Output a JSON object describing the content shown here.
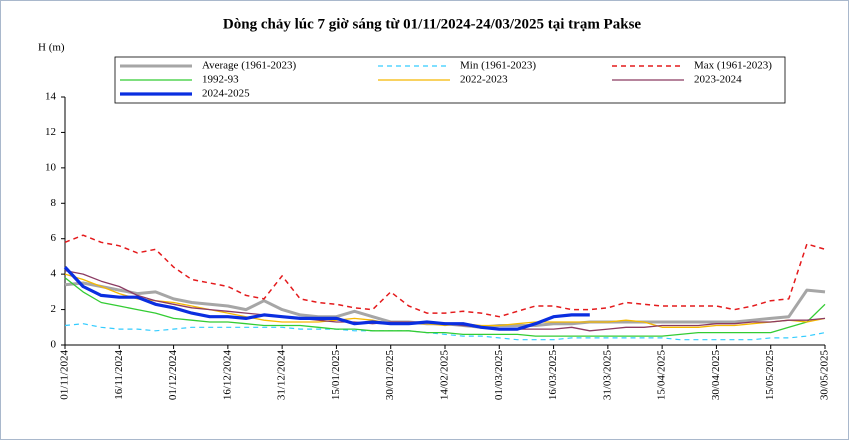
{
  "chart_data": {
    "type": "line",
    "title": "Dòng chảy lúc 7 giờ sáng từ 01/11/2024-24/03/2025 tại trạm Pakse",
    "y_label": "H (m)",
    "x": [
      "01/11/2024",
      "06/11/2024",
      "11/11/2024",
      "16/11/2024",
      "21/11/2024",
      "26/11/2024",
      "01/12/2024",
      "06/12/2024",
      "11/12/2024",
      "16/12/2024",
      "21/12/2024",
      "26/12/2024",
      "31/12/2024",
      "05/01/2025",
      "10/01/2025",
      "15/01/2025",
      "20/01/2025",
      "25/01/2025",
      "30/01/2025",
      "04/02/2025",
      "09/02/2025",
      "14/02/2025",
      "19/02/2025",
      "24/02/2025",
      "01/03/2025",
      "06/03/2025",
      "11/03/2025",
      "16/03/2025",
      "21/03/2025",
      "26/03/2025",
      "31/03/2025",
      "05/04/2025",
      "10/04/2025",
      "15/04/2025",
      "20/04/2025",
      "25/04/2025",
      "30/04/2025",
      "05/05/2025",
      "10/05/2025",
      "15/05/2025",
      "20/05/2025",
      "25/05/2025",
      "30/05/2025"
    ],
    "xlim": [
      "01/11/2024",
      "30/05/2025"
    ],
    "xticks": [
      "01/11/2024",
      "16/11/2024",
      "01/12/2024",
      "16/12/2024",
      "31/12/2024",
      "15/01/2025",
      "30/01/2025",
      "14/02/2025",
      "01/03/2025",
      "16/03/2025",
      "31/03/2025",
      "15/04/2025",
      "30/04/2025",
      "15/05/2025",
      "30/05/2025"
    ],
    "ylim": [
      0,
      14
    ],
    "yticks": [
      0,
      2,
      4,
      6,
      8,
      10,
      12,
      14
    ],
    "grid": false,
    "series": [
      {
        "name": "Average (1961-2023)",
        "color": "#a6a6a6",
        "linewidth": 3,
        "linestyle": "solid",
        "values": [
          3.4,
          3.5,
          3.3,
          3.1,
          2.9,
          3.0,
          2.6,
          2.4,
          2.3,
          2.2,
          2.0,
          2.5,
          2.0,
          1.7,
          1.6,
          1.6,
          1.9,
          1.6,
          1.3,
          1.3,
          1.2,
          1.2,
          1.1,
          1.0,
          1.1,
          1.1,
          1.1,
          1.2,
          1.2,
          1.3,
          1.3,
          1.3,
          1.3,
          1.3,
          1.3,
          1.3,
          1.3,
          1.3,
          1.4,
          1.5,
          1.6,
          3.1,
          3.0
        ]
      },
      {
        "name": "Min (1961-2023)",
        "color": "#33ccff",
        "linewidth": 1.2,
        "linestyle": "dashed",
        "values": [
          1.1,
          1.2,
          1.0,
          0.9,
          0.9,
          0.8,
          0.9,
          1.0,
          1.0,
          1.0,
          1.0,
          1.0,
          1.0,
          0.9,
          0.9,
          0.9,
          0.8,
          0.8,
          0.8,
          0.8,
          0.7,
          0.6,
          0.5,
          0.5,
          0.4,
          0.3,
          0.3,
          0.3,
          0.4,
          0.4,
          0.4,
          0.4,
          0.4,
          0.4,
          0.3,
          0.3,
          0.3,
          0.3,
          0.3,
          0.4,
          0.4,
          0.5,
          0.7
        ]
      },
      {
        "name": "Max (1961-2023)",
        "color": "#e41a1c",
        "linewidth": 1.5,
        "linestyle": "dashed",
        "values": [
          5.8,
          6.2,
          5.8,
          5.6,
          5.2,
          5.4,
          4.4,
          3.7,
          3.5,
          3.3,
          2.8,
          2.6,
          3.9,
          2.6,
          2.4,
          2.3,
          2.1,
          2.0,
          3.0,
          2.2,
          1.8,
          1.8,
          1.9,
          1.8,
          1.6,
          1.9,
          2.2,
          2.2,
          2.0,
          2.0,
          2.1,
          2.4,
          2.3,
          2.2,
          2.2,
          2.2,
          2.2,
          2.0,
          2.2,
          2.5,
          2.6,
          5.7,
          5.4
        ]
      },
      {
        "name": "1992-93",
        "color": "#33cc33",
        "linewidth": 1.3,
        "linestyle": "solid",
        "values": [
          3.8,
          3.0,
          2.4,
          2.2,
          2.0,
          1.8,
          1.5,
          1.4,
          1.3,
          1.3,
          1.2,
          1.1,
          1.1,
          1.1,
          1.0,
          0.9,
          0.9,
          0.8,
          0.8,
          0.8,
          0.7,
          0.7,
          0.6,
          0.6,
          0.6,
          0.6,
          0.5,
          0.5,
          0.5,
          0.5,
          0.5,
          0.5,
          0.5,
          0.5,
          0.6,
          0.7,
          0.7,
          0.7,
          0.7,
          0.7,
          1.0,
          1.3,
          2.3
        ]
      },
      {
        "name": "2022-2023",
        "color": "#f5b800",
        "linewidth": 1.3,
        "linestyle": "solid",
        "values": [
          4.0,
          3.7,
          3.3,
          2.9,
          2.6,
          2.5,
          2.4,
          2.2,
          2.0,
          1.8,
          1.6,
          1.4,
          1.3,
          1.3,
          1.3,
          1.4,
          1.5,
          1.4,
          1.2,
          1.2,
          1.2,
          1.1,
          1.2,
          1.1,
          1.1,
          1.2,
          1.3,
          1.3,
          1.3,
          1.3,
          1.3,
          1.4,
          1.3,
          1.0,
          1.0,
          1.0,
          1.1,
          1.1,
          1.2,
          1.3,
          1.4,
          1.3,
          1.5
        ]
      },
      {
        "name": "2023-2024",
        "color": "#8b3a62",
        "linewidth": 1.3,
        "linestyle": "solid",
        "values": [
          4.2,
          4.0,
          3.6,
          3.3,
          2.8,
          2.5,
          2.3,
          2.1,
          2.0,
          1.9,
          1.8,
          1.7,
          1.6,
          1.5,
          1.4,
          1.3,
          1.3,
          1.2,
          1.3,
          1.3,
          1.3,
          1.2,
          1.1,
          1.0,
          0.9,
          0.9,
          0.9,
          0.9,
          1.0,
          0.8,
          0.9,
          1.0,
          1.0,
          1.1,
          1.1,
          1.1,
          1.2,
          1.2,
          1.3,
          1.3,
          1.4,
          1.4,
          1.5
        ]
      },
      {
        "name": "2024-2025",
        "color": "#0a2ee0",
        "linewidth": 3.2,
        "linestyle": "solid",
        "values": [
          4.4,
          3.3,
          2.8,
          2.7,
          2.7,
          2.3,
          2.1,
          1.8,
          1.6,
          1.6,
          1.5,
          1.7,
          1.6,
          1.5,
          1.5,
          1.5,
          1.2,
          1.3,
          1.2,
          1.2,
          1.3,
          1.2,
          1.2,
          1.0,
          0.9,
          0.9,
          1.2,
          1.6,
          1.7,
          1.7,
          null,
          null,
          null,
          null,
          null,
          null,
          null,
          null,
          null,
          null,
          null,
          null,
          null
        ]
      }
    ]
  }
}
